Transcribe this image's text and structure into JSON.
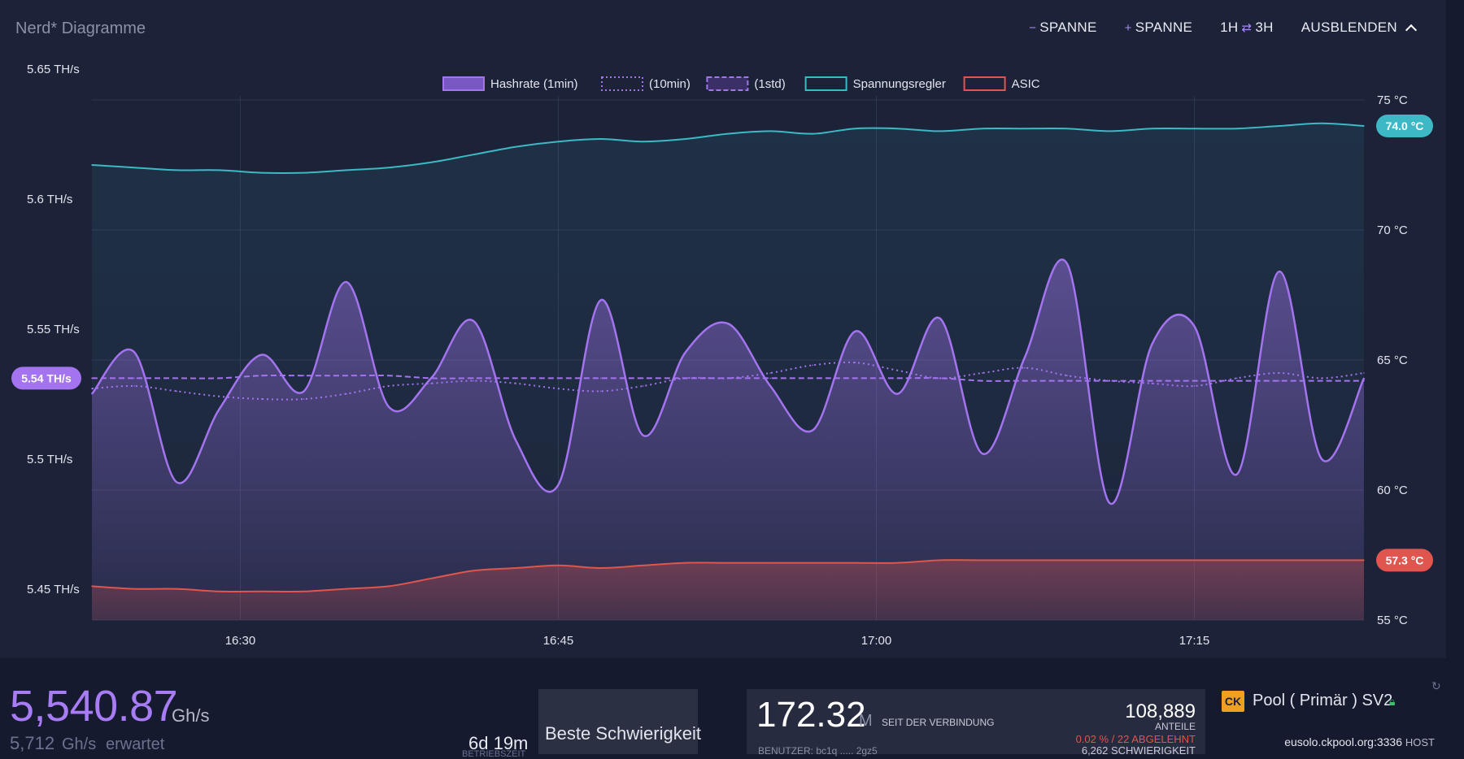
{
  "header": {
    "title": "Nerd* Diagramme",
    "minus_span": "SPANNE",
    "plus_span": "SPANNE",
    "range_left": "1H",
    "range_right": "3H",
    "hide": "AUSBLENDEN"
  },
  "chart_data": {
    "type": "line",
    "legend_position": "top",
    "legend": [
      "Hashrate (1min)",
      "(10min)",
      "(1std)",
      "Spannungsregler",
      "ASIC"
    ],
    "x_ticks": [
      "16:30",
      "16:45",
      "17:00",
      "17:15"
    ],
    "x_range": [
      "16:23",
      "17:23"
    ],
    "y_left_ticks": [
      "5.65 TH/s",
      "5.6 TH/s",
      "5.55 TH/s",
      "5.5 TH/s",
      "5.45 TH/s"
    ],
    "y_left_range": [
      5.45,
      5.65
    ],
    "y_right_ticks": [
      "75 °C",
      "70 °C",
      "65 °C",
      "60 °C",
      "55 °C"
    ],
    "y_right_range": [
      55,
      75
    ],
    "current_hashrate_label": "5.54 TH/s",
    "current_vr_label": "74.0 °C",
    "current_asic_label": "57.3 °C",
    "x": [
      "16:23",
      "16:25",
      "16:27",
      "16:29",
      "16:31",
      "16:33",
      "16:35",
      "16:37",
      "16:39",
      "16:41",
      "16:43",
      "16:45",
      "16:47",
      "16:49",
      "16:51",
      "16:53",
      "16:55",
      "16:57",
      "16:59",
      "17:01",
      "17:03",
      "17:05",
      "17:07",
      "17:09",
      "17:11",
      "17:13",
      "17:15",
      "17:17",
      "17:19",
      "17:21",
      "17:23"
    ],
    "series": [
      {
        "name": "Hashrate (1min)",
        "unit": "TH/s",
        "color": "#a474f0",
        "values": [
          5.537,
          5.553,
          5.503,
          5.531,
          5.552,
          5.538,
          5.58,
          5.532,
          5.543,
          5.565,
          5.519,
          5.502,
          5.573,
          5.521,
          5.553,
          5.564,
          5.54,
          5.523,
          5.561,
          5.537,
          5.566,
          5.514,
          5.551,
          5.587,
          5.495,
          5.556,
          5.563,
          5.506,
          5.584,
          5.512,
          5.543
        ]
      },
      {
        "name": "(10min)",
        "unit": "TH/s",
        "color": "#a474f0",
        "values": [
          5.539,
          5.54,
          5.538,
          5.536,
          5.535,
          5.535,
          5.537,
          5.54,
          5.541,
          5.542,
          5.541,
          5.539,
          5.538,
          5.54,
          5.543,
          5.543,
          5.545,
          5.548,
          5.549,
          5.546,
          5.543,
          5.545,
          5.547,
          5.544,
          5.542,
          5.541,
          5.54,
          5.543,
          5.545,
          5.543,
          5.545
        ]
      },
      {
        "name": "(1std)",
        "unit": "TH/s",
        "color": "#a474f0",
        "values": [
          5.543,
          5.543,
          5.543,
          5.543,
          5.544,
          5.544,
          5.544,
          5.544,
          5.543,
          5.543,
          5.543,
          5.543,
          5.543,
          5.543,
          5.543,
          5.543,
          5.543,
          5.543,
          5.543,
          5.543,
          5.543,
          5.542,
          5.542,
          5.542,
          5.542,
          5.542,
          5.542,
          5.542,
          5.542,
          5.542,
          5.542
        ]
      },
      {
        "name": "Spannungsregler",
        "unit": "°C",
        "color": "#3cb9c4",
        "values": [
          72.5,
          72.4,
          72.3,
          72.3,
          72.2,
          72.2,
          72.3,
          72.4,
          72.6,
          72.9,
          73.2,
          73.4,
          73.5,
          73.4,
          73.5,
          73.7,
          73.8,
          73.7,
          73.9,
          73.9,
          73.8,
          73.9,
          73.9,
          73.9,
          73.8,
          73.9,
          73.9,
          73.9,
          74.0,
          74.1,
          74.0
        ]
      },
      {
        "name": "ASIC",
        "unit": "°C",
        "color": "#e0554e",
        "values": [
          56.3,
          56.2,
          56.2,
          56.1,
          56.1,
          56.1,
          56.2,
          56.3,
          56.6,
          56.9,
          57.0,
          57.1,
          57.0,
          57.1,
          57.2,
          57.2,
          57.2,
          57.2,
          57.2,
          57.2,
          57.3,
          57.3,
          57.3,
          57.3,
          57.3,
          57.3,
          57.3,
          57.3,
          57.3,
          57.3,
          57.3
        ]
      }
    ]
  },
  "stats": {
    "hashrate": "5,540.87",
    "hashrate_unit": "Gh/s",
    "expected_value": "5,712",
    "expected_unit": "Gh/s",
    "expected_label": "erwartet",
    "uptime": "6d 19m",
    "uptime_label": "BETRIEBSZEIT",
    "best_difficulty_label": "Beste Schwierigkeit",
    "since_connection": "172.32",
    "since_connection_unit": "M",
    "since_connection_label": "SEIT DER VERBINDUNG",
    "user": "BENUTZER: bc1q ..... 2gz5",
    "shares": "108,889",
    "shares_label": "ANTEILE",
    "rejected": "0.02 % / 22  ABGELEHNT",
    "difficulty": "6,262 SCHWIERIGKEIT",
    "pool_logo": "CK",
    "pool_name": "Pool ( Primär ) SV2",
    "host": "eusolo.ckpool.org:3336",
    "host_label": "HOST"
  },
  "colors": {
    "background": "#1c2238",
    "hashrate": "#a474f0",
    "vr": "#3cb9c4",
    "asic": "#e0554e"
  }
}
